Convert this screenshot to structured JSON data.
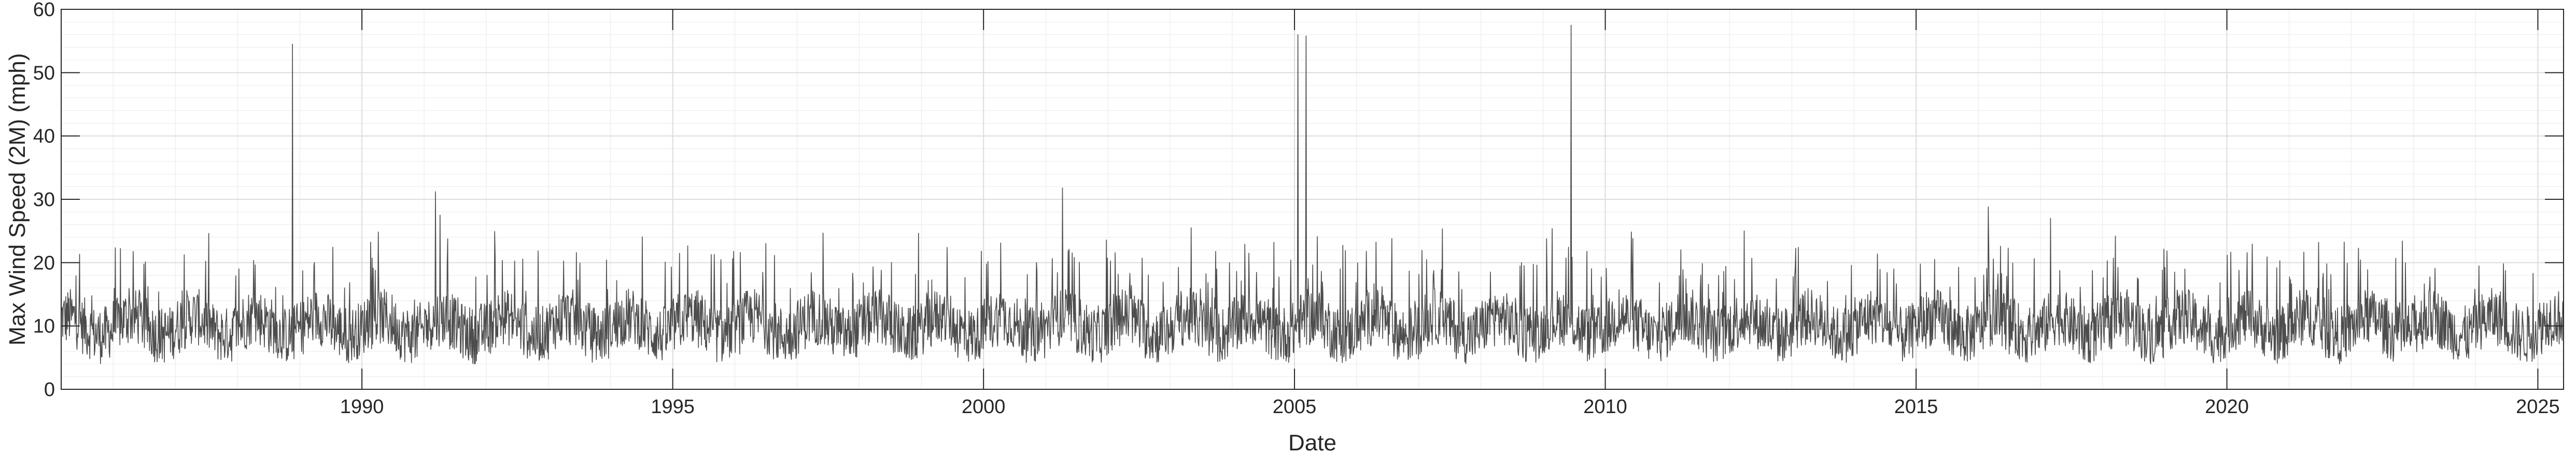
{
  "chart_data": {
    "type": "line",
    "title": "",
    "xlabel": "Date",
    "ylabel": "Max Wind Speed (2M) (mph)",
    "xlim": [
      "1985-03-01",
      "2025-06-01"
    ],
    "ylim": [
      0,
      60
    ],
    "grid": true,
    "x_ticks": [
      "1990",
      "1995",
      "2000",
      "2005",
      "2010",
      "2015",
      "2020",
      "2025"
    ],
    "y_ticks": [
      "0",
      "10",
      "20",
      "30",
      "40",
      "50",
      "60"
    ],
    "line_color": "#4d4d4d",
    "series": [
      {
        "name": "",
        "typical_baseline_mph": 10,
        "typical_upper_mph": 20,
        "spikes": [
          {
            "date": "1988-11-20",
            "value": 54.5
          },
          {
            "date": "1991-03-10",
            "value": 31.2
          },
          {
            "date": "1991-04-05",
            "value": 27.5
          },
          {
            "date": "2001-04-10",
            "value": 31.8
          },
          {
            "date": "2005-01-20",
            "value": 56.0
          },
          {
            "date": "2005-03-10",
            "value": 55.8
          },
          {
            "date": "2009-06-15",
            "value": 57.5
          },
          {
            "date": "2016-03-01",
            "value": 28.8
          },
          {
            "date": "2017-03-01",
            "value": 27.0
          }
        ]
      }
    ]
  }
}
